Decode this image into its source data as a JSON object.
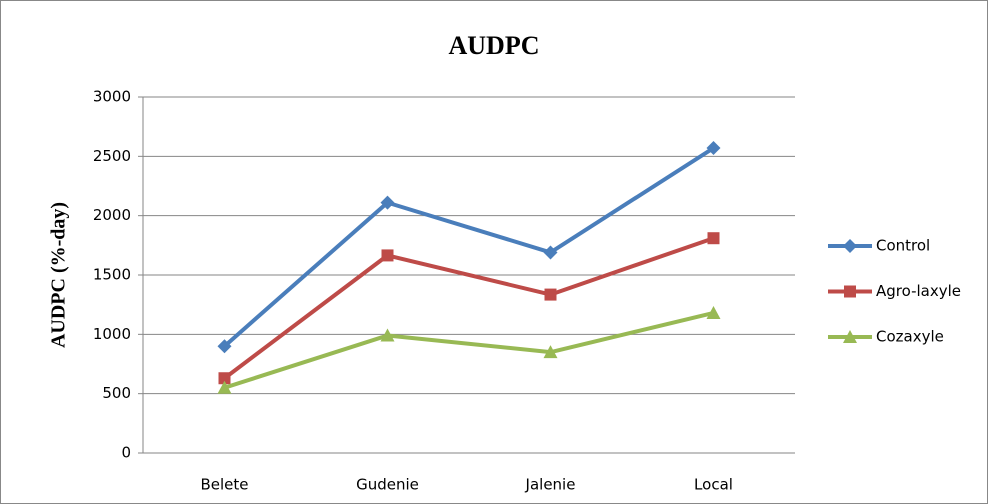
{
  "chart_data": {
    "type": "line",
    "title": "AUDPC",
    "y_label": "AUDPC  (%-day)",
    "categories": [
      "Belete",
      "Gudenie",
      "Jalenie",
      "Local"
    ],
    "series": [
      {
        "name": "Control",
        "color": "#4a7ebb",
        "values": [
          900,
          2110,
          1690,
          2570
        ]
      },
      {
        "name": "Agro-laxyle",
        "color": "#be4b48",
        "values": [
          630,
          1665,
          1335,
          1810
        ]
      },
      {
        "name": "Cozaxyle",
        "color": "#98b954",
        "values": [
          550,
          990,
          850,
          1180
        ]
      }
    ],
    "ylim": [
      0,
      3000
    ],
    "yticks": [
      0,
      500,
      1000,
      1500,
      2000,
      2500,
      3000
    ],
    "grid": true,
    "legend": "right"
  }
}
